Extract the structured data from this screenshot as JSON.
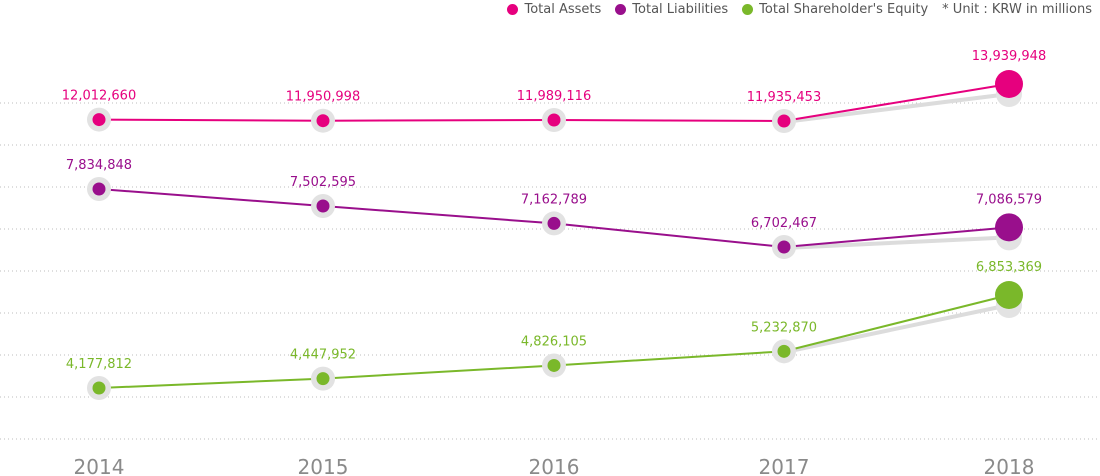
{
  "legend": {
    "items": [
      {
        "label": "Total Assets",
        "color": "#e6007e"
      },
      {
        "label": "Total Liabilities",
        "color": "#990f8c"
      },
      {
        "label": "Total  Shareholder's Equity",
        "color": "#7ab82a"
      }
    ],
    "note": "* Unit : KRW in millions"
  },
  "chart_data": {
    "type": "line",
    "categories": [
      "2014",
      "2015",
      "2016",
      "2017",
      "2018"
    ],
    "series": [
      {
        "name": "Total Assets",
        "color": "#e6007e",
        "values": [
          12012660,
          11950998,
          11989116,
          11935453,
          13939948
        ],
        "labels": [
          "12,012,660",
          "11,950,998",
          "11,989,116",
          "11,935,453",
          "13,939,948"
        ]
      },
      {
        "name": "Total Liabilities",
        "color": "#990f8c",
        "values": [
          7834848,
          7502595,
          7162789,
          6702467,
          7086579
        ],
        "labels": [
          "7,834,848",
          "7,502,595",
          "7,162,789",
          "6,702,467",
          "7,086,579"
        ]
      },
      {
        "name": "Total  Shareholder's Equity",
        "color": "#7ab82a",
        "values": [
          4177812,
          4447952,
          4826105,
          5232870,
          6853369
        ],
        "labels": [
          "4,177,812",
          "4,447,952",
          "4,826,105",
          "5,232,870",
          "6,853,369"
        ]
      }
    ],
    "grid": "horizontal dotted lines",
    "legend_position": "top-right",
    "highlight_last_point": true
  }
}
